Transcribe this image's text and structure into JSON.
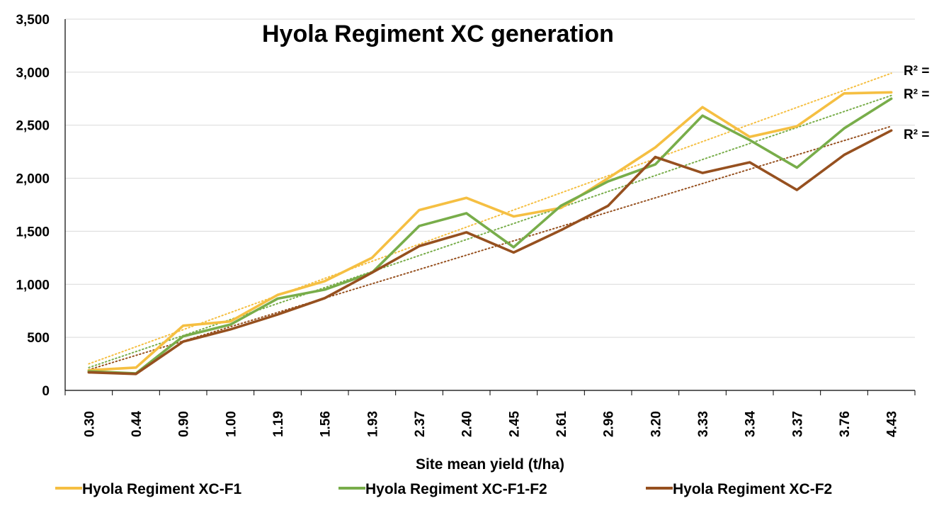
{
  "chart_data": {
    "type": "line",
    "title": "Hyola Regiment XC generation",
    "xlabel": "Site mean yield (t/ha)",
    "ylabel": "",
    "categories": [
      "0.30",
      "0.44",
      "0.90",
      "1.00",
      "1.19",
      "1.56",
      "1.93",
      "2.37",
      "2.40",
      "2.45",
      "2.61",
      "2.96",
      "3.20",
      "3.33",
      "3.34",
      "3.37",
      "3.76",
      "4.43"
    ],
    "y_ticks": [
      "0",
      "500",
      "1,000",
      "1,500",
      "2,000",
      "2,500",
      "3,000",
      "3,500"
    ],
    "ylim": [
      0,
      3500
    ],
    "grid": true,
    "legend_position": "bottom",
    "series": [
      {
        "name": "Hyola Regiment XC-F1",
        "color": "#F5BF42",
        "values": [
          190,
          215,
          610,
          650,
          900,
          1030,
          1250,
          1700,
          1815,
          1640,
          1720,
          2000,
          2290,
          2670,
          2390,
          2490,
          2800,
          2810
        ],
        "trendline": {
          "start": 250,
          "end": 2990,
          "label": "R² ="
        }
      },
      {
        "name": "Hyola Regiment XC-F1-F2",
        "color": "#78AD4A",
        "values": [
          180,
          160,
          510,
          620,
          865,
          950,
          1110,
          1550,
          1670,
          1350,
          1740,
          1970,
          2130,
          2590,
          2360,
          2100,
          2470,
          2750
        ],
        "trendline": {
          "start": 215,
          "end": 2780,
          "label": "R² ="
        }
      },
      {
        "name": "Hyola Regiment XC-F2",
        "color": "#96501F",
        "values": [
          170,
          155,
          460,
          575,
          715,
          870,
          1110,
          1360,
          1490,
          1300,
          1510,
          1740,
          2200,
          2050,
          2150,
          1890,
          2220,
          2450
        ],
        "trendline": {
          "start": 195,
          "end": 2490,
          "label": "R² ="
        }
      }
    ]
  }
}
